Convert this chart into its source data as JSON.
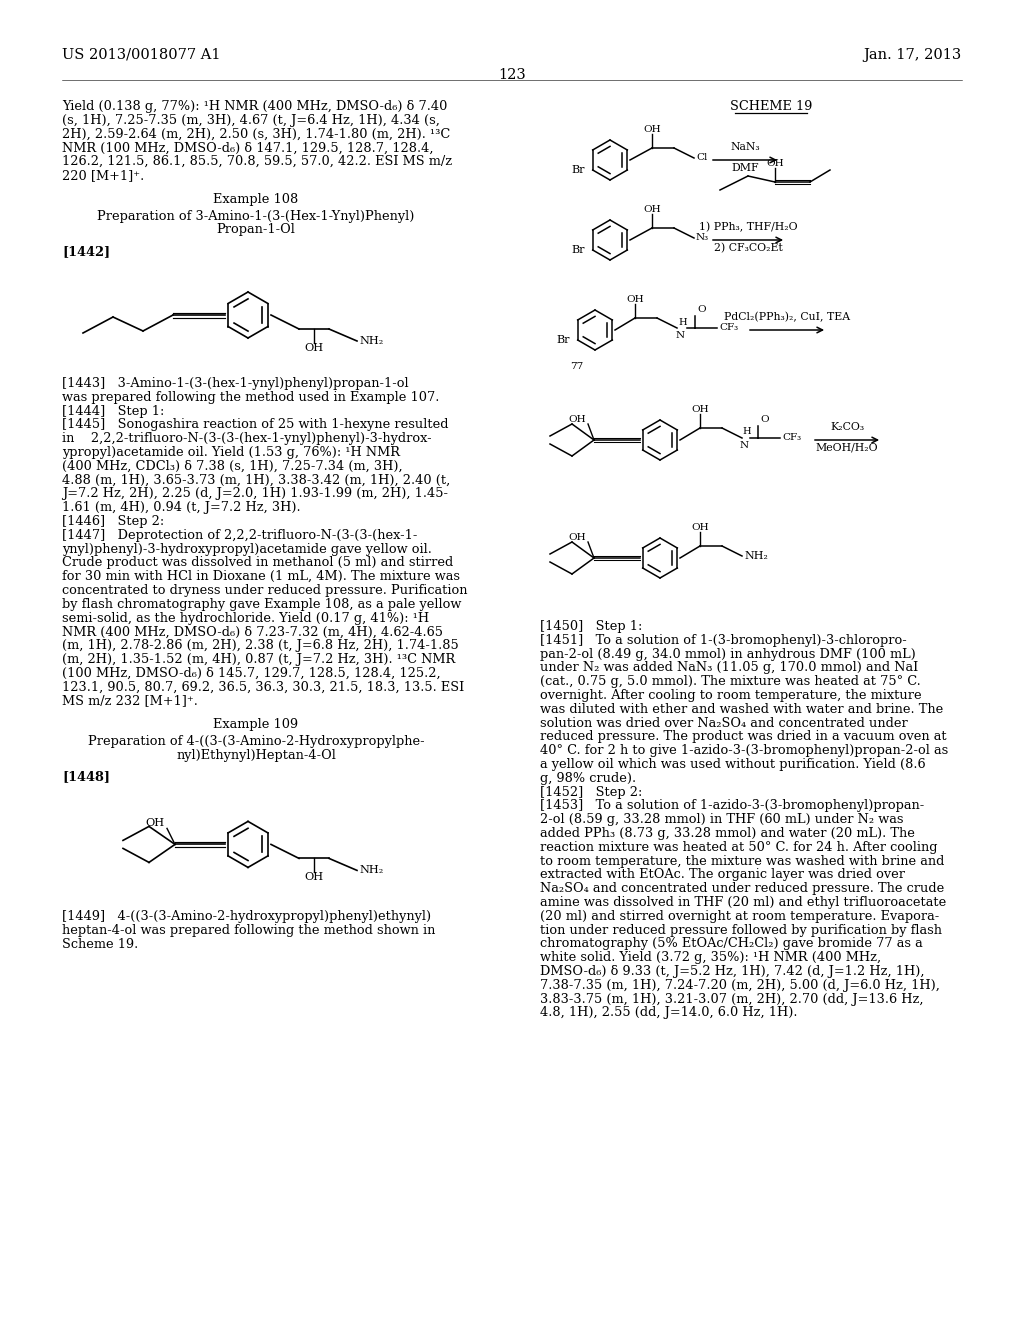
{
  "page_number": "123",
  "header_left": "US 2013/0018077 A1",
  "header_right": "Jan. 17, 2013",
  "bg_color": "#ffffff",
  "para1_lines": [
    "Yield (0.138 g, 77%): ¹H NMR (400 MHz, DMSO-d₆) δ 7.40",
    "(s, 1H), 7.25-7.35 (m, 3H), 4.67 (t, J=6.4 Hz, 1H), 4.34 (s,",
    "2H), 2.59-2.64 (m, 2H), 2.50 (s, 3H), 1.74-1.80 (m, 2H). ¹³C",
    "NMR (100 MHz, DMSO-d₆) δ 147.1, 129.5, 128.7, 128.4,",
    "126.2, 121.5, 86.1, 85.5, 70.8, 59.5, 57.0, 42.2. ESI MS m/z",
    "220 [M+1]⁺."
  ],
  "ex108_header": "Example 108",
  "ex108_title": [
    "Preparation of 3-Amino-1-(3-(Hex-1-Ynyl)Phenyl)",
    "Propan-1-Ol"
  ],
  "label1442": "[1442]",
  "label1443_lines": [
    "[1443]   3-Amino-1-(3-(hex-1-ynyl)phenyl)propan-1-ol",
    "was prepared following the method used in Example 107.",
    "[1444]   Step 1:",
    "[1445]   Sonogashira reaction of 25 with 1-hexyne resulted",
    "in    2,2,2-trifluoro-N-(3-(3-(hex-1-ynyl)phenyl)-3-hydrox-",
    "ypropyl)acetamide oil. Yield (1.53 g, 76%): ¹H NMR",
    "(400 MHz, CDCl₃) δ 7.38 (s, 1H), 7.25-7.34 (m, 3H),",
    "4.88 (m, 1H), 3.65-3.73 (m, 1H), 3.38-3.42 (m, 1H), 2.40 (t,",
    "J=7.2 Hz, 2H), 2.25 (d, J=2.0, 1H) 1.93-1.99 (m, 2H), 1.45-",
    "1.61 (m, 4H), 0.94 (t, J=7.2 Hz, 3H).",
    "[1446]   Step 2:",
    "[1447]   Deprotection of 2,2,2-trifluoro-N-(3-(3-(hex-1-",
    "ynyl)phenyl)-3-hydroxypropyl)acetamide gave yellow oil.",
    "Crude product was dissolved in methanol (5 ml) and stirred",
    "for 30 min with HCl in Dioxane (1 mL, 4M). The mixture was",
    "concentrated to dryness under reduced pressure. Purification",
    "by flash chromatography gave Example 108, as a pale yellow",
    "semi-solid, as the hydrochloride. Yield (0.17 g, 41%): ¹H",
    "NMR (400 MHz, DMSO-d₆) δ 7.23-7.32 (m, 4H), 4.62-4.65",
    "(m, 1H), 2.78-2.86 (m, 2H), 2.38 (t, J=6.8 Hz, 2H), 1.74-1.85",
    "(m, 2H), 1.35-1.52 (m, 4H), 0.87 (t, J=7.2 Hz, 3H). ¹³C NMR",
    "(100 MHz, DMSO-d₆) δ 145.7, 129.7, 128.5, 128.4, 125.2,",
    "123.1, 90.5, 80.7, 69.2, 36.5, 36.3, 30.3, 21.5, 18.3, 13.5. ESI",
    "MS m/z 232 [M+1]⁺."
  ],
  "ex109_header": "Example 109",
  "ex109_title": [
    "Preparation of 4-((3-(3-Amino-2-Hydroxypropylphe-",
    "nyl)Ethynyl)Heptan-4-Ol"
  ],
  "label1448": "[1448]",
  "label1449_lines": [
    "[1449]   4-((3-(3-Amino-2-hydroxypropyl)phenyl)ethynyl)",
    "heptan-4-ol was prepared following the method shown in",
    "Scheme 19."
  ],
  "scheme19": "SCHEME 19",
  "right_lines": [
    "[1450]   Step 1:",
    "[1451]   To a solution of 1-(3-bromophenyl)-3-chloropro-",
    "pan-2-ol (8.49 g, 34.0 mmol) in anhydrous DMF (100 mL)",
    "under N₂ was added NaN₃ (11.05 g, 170.0 mmol) and NaI",
    "(cat., 0.75 g, 5.0 mmol). The mixture was heated at 75° C.",
    "overnight. After cooling to room temperature, the mixture",
    "was diluted with ether and washed with water and brine. The",
    "solution was dried over Na₂SO₄ and concentrated under",
    "reduced pressure. The product was dried in a vacuum oven at",
    "40° C. for 2 h to give 1-azido-3-(3-bromophenyl)propan-2-ol as",
    "a yellow oil which was used without purification. Yield (8.6",
    "g, 98% crude).",
    "[1452]   Step 2:",
    "[1453]   To a solution of 1-azido-3-(3-bromophenyl)propan-",
    "2-ol (8.59 g, 33.28 mmol) in THF (60 mL) under N₂ was",
    "added PPh₃ (8.73 g, 33.28 mmol) and water (20 mL). The",
    "reaction mixture was heated at 50° C. for 24 h. After cooling",
    "to room temperature, the mixture was washed with brine and",
    "extracted with EtOAc. The organic layer was dried over",
    "Na₂SO₄ and concentrated under reduced pressure. The crude",
    "amine was dissolved in THF (20 ml) and ethyl trifluoroacetate",
    "(20 ml) and stirred overnight at room temperature. Evapora-",
    "tion under reduced pressure followed by purification by flash",
    "chromatography (5% EtOAc/CH₂Cl₂) gave bromide 77 as a",
    "white solid. Yield (3.72 g, 35%): ¹H NMR (400 MHz,",
    "DMSO-d₆) δ 9.33 (t, J=5.2 Hz, 1H), 7.42 (d, J=1.2 Hz, 1H),",
    "7.38-7.35 (m, 1H), 7.24-7.20 (m, 2H), 5.00 (d, J=6.0 Hz, 1H),",
    "3.83-3.75 (m, 1H), 3.21-3.07 (m, 2H), 2.70 (dd, J=13.6 Hz,",
    "4.8, 1H), 2.55 (dd, J=14.0, 6.0 Hz, 1H)."
  ]
}
